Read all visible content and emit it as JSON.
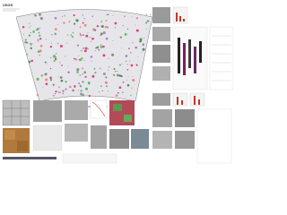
{
  "header": {
    "logo": "USGS"
  }
}
